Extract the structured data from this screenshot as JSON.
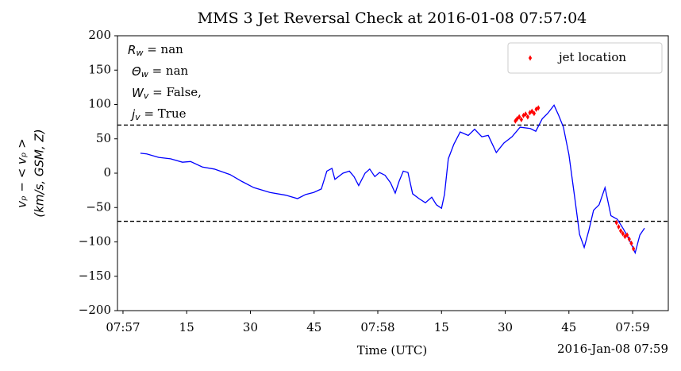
{
  "chart_data": {
    "type": "line",
    "title": "MMS 3 Jet Reversal Check at 2016-01-08 07:57:04",
    "xlabel": "Time (UTC)",
    "ylabel": [
      "vₚ − < vₚ >",
      "(km/s, GSM, Z)"
    ],
    "offset_label": "2016-Jan-08 07:59",
    "xlim": [
      -1.3,
      128.4
    ],
    "ylim": [
      -200,
      200
    ],
    "xticks": [
      {
        "value": 0,
        "label": "07:57"
      },
      15,
      30,
      45,
      {
        "value": 60,
        "label": "07:58"
      },
      {
        "value": 75,
        "label": "15"
      },
      {
        "value": 90,
        "label": "30"
      },
      {
        "value": 105,
        "label": "45"
      },
      {
        "value": 120,
        "label": "07:59"
      }
    ],
    "yticks": [
      {
        "value": -200,
        "label": "−200"
      },
      {
        "value": -150,
        "label": "−150"
      },
      {
        "value": -100,
        "label": "−100"
      },
      {
        "value": -50,
        "label": "−50"
      },
      0,
      50,
      100,
      150,
      200
    ],
    "hlines": [
      70,
      -70
    ],
    "legend": "upper right",
    "annotation": [
      {
        "symbol": "R",
        "sub": "w",
        "text": " = nan"
      },
      {
        "symbol": "Θ",
        "sub": "w",
        "text": " = nan"
      },
      {
        "symbol": "W",
        "sub": "v",
        "text": " = False,"
      },
      {
        "symbol": "j",
        "sub": "v",
        "text": " = True"
      }
    ],
    "series": [
      {
        "type": "line",
        "color": "#0000ff",
        "x": [
          4.1,
          5.6,
          8.4,
          11.2,
          14,
          15.9,
          18.7,
          21.5,
          25.2,
          28,
          30.8,
          34.6,
          38.3,
          41.1,
          43,
          44.9,
          46.7,
          48,
          49.2,
          49.9,
          51.8,
          53.3,
          54.4,
          55.5,
          57,
          58.1,
          59.3,
          60.4,
          61.7,
          63,
          64.1,
          65,
          66,
          67.1,
          68.2,
          69.7,
          71.2,
          72.7,
          73.8,
          75,
          75.7,
          76.6,
          77.9,
          79.4,
          81.3,
          82.8,
          84.5,
          86,
          87.9,
          89.7,
          91.6,
          93.5,
          95.9,
          97.2,
          98.7,
          100,
          101.5,
          102.6,
          103.7,
          105,
          106.4,
          107.5,
          108.6,
          109.7,
          110.8,
          112.1,
          113.5,
          114.9,
          116.4,
          117.8,
          119.1,
          120.6,
          121.7,
          122.8
        ],
        "values": [
          29,
          28,
          23,
          21,
          16,
          17,
          9,
          6,
          -2,
          -12,
          -21,
          -28,
          -32,
          -37,
          -31,
          -28,
          -23,
          3,
          7,
          -9,
          0,
          3,
          -5,
          -18,
          0,
          6,
          -5,
          1,
          -3,
          -14,
          -29,
          -12,
          3,
          1,
          -30,
          -37,
          -43,
          -35,
          -46,
          -51,
          -31,
          21,
          42,
          60,
          55,
          64,
          53,
          55,
          30,
          44,
          53,
          67,
          65,
          61,
          79,
          87,
          99,
          84,
          67,
          27,
          -37,
          -89,
          -108,
          -83,
          -54,
          -46,
          -21,
          -62,
          -67,
          -81,
          -95,
          -116,
          -90,
          -80
        ]
      },
      {
        "type": "scatter",
        "name": "jet location",
        "color": "#ff0000",
        "x": [
          92.4,
          92.8,
          93.3,
          93.8,
          94.3,
          94.8,
          95.3,
          95.8,
          96.3,
          96.8,
          97.3,
          97.8,
          116.2,
          116.7,
          117.2,
          117.7,
          118.2,
          118.7,
          119.2,
          119.7,
          120.2
        ],
        "values": [
          76,
          79,
          82,
          78,
          84,
          86,
          82,
          88,
          90,
          87,
          93,
          95,
          -72,
          -78,
          -84,
          -88,
          -92,
          -90,
          -96,
          -102,
          -110
        ]
      }
    ]
  }
}
